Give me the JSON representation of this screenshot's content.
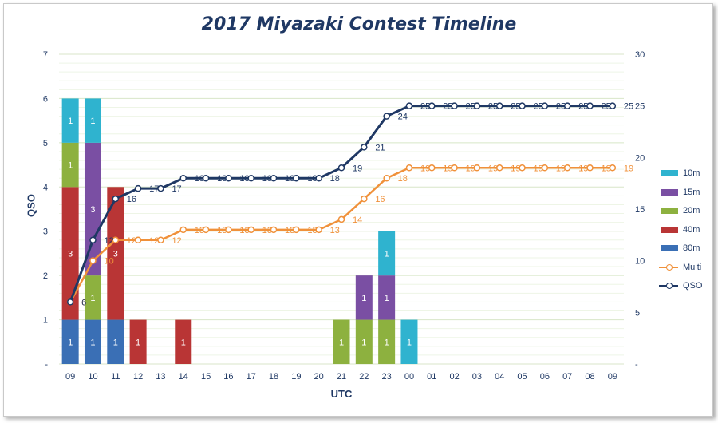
{
  "chart_data": {
    "type": "bar",
    "title": "2017 Miyazaki Contest Timeline",
    "xlabel": "UTC",
    "ylabel": "QSO",
    "categories": [
      "09",
      "10",
      "11",
      "12",
      "13",
      "14",
      "15",
      "16",
      "17",
      "18",
      "19",
      "20",
      "21",
      "22",
      "23",
      "00",
      "01",
      "02",
      "03",
      "04",
      "05",
      "06",
      "07",
      "08",
      "09"
    ],
    "ylim": [
      0,
      7
    ],
    "y_ticks": [
      "-",
      "1",
      "2",
      "3",
      "4",
      "5",
      "6",
      "7"
    ],
    "y2lim": [
      0,
      30
    ],
    "y2_ticks": [
      "-",
      "5",
      "10",
      "15",
      "20",
      "25",
      "30"
    ],
    "stack_order": [
      "80m",
      "40m",
      "20m",
      "15m",
      "10m"
    ],
    "bar_series": [
      {
        "name": "80m",
        "color": "#3a6fb5",
        "values": [
          1,
          1,
          1,
          0,
          0,
          0,
          0,
          0,
          0,
          0,
          0,
          0,
          0,
          0,
          0,
          0,
          0,
          0,
          0,
          0,
          0,
          0,
          0,
          0,
          0
        ]
      },
      {
        "name": "40m",
        "color": "#b93535",
        "values": [
          3,
          0,
          3,
          1,
          0,
          1,
          0,
          0,
          0,
          0,
          0,
          0,
          0,
          0,
          0,
          0,
          0,
          0,
          0,
          0,
          0,
          0,
          0,
          0,
          0
        ]
      },
      {
        "name": "20m",
        "color": "#8db13f",
        "values": [
          1,
          1,
          0,
          0,
          0,
          0,
          0,
          0,
          0,
          0,
          0,
          0,
          1,
          1,
          1,
          0,
          0,
          0,
          0,
          0,
          0,
          0,
          0,
          0,
          0
        ]
      },
      {
        "name": "15m",
        "color": "#7a4fa3",
        "values": [
          0,
          3,
          0,
          0,
          0,
          0,
          0,
          0,
          0,
          0,
          0,
          0,
          0,
          1,
          1,
          0,
          0,
          0,
          0,
          0,
          0,
          0,
          0,
          0,
          0
        ]
      },
      {
        "name": "10m",
        "color": "#2fb3cf",
        "values": [
          1,
          1,
          0,
          0,
          0,
          0,
          0,
          0,
          0,
          0,
          0,
          0,
          0,
          0,
          1,
          1,
          0,
          0,
          0,
          0,
          0,
          0,
          0,
          0,
          0
        ]
      }
    ],
    "line_series": [
      {
        "name": "Multi",
        "color": "#f0913a",
        "axis": "right",
        "values": [
          6,
          10,
          12,
          12,
          12,
          13,
          13,
          13,
          13,
          13,
          13,
          13,
          14,
          16,
          18,
          19,
          19,
          19,
          19,
          19,
          19,
          19,
          19,
          19,
          19
        ]
      },
      {
        "name": "QSO",
        "color": "#1f3864",
        "axis": "right",
        "values": [
          6,
          12,
          16,
          17,
          17,
          18,
          18,
          18,
          18,
          18,
          18,
          18,
          19,
          21,
          24,
          25,
          25,
          25,
          25,
          25,
          25,
          25,
          25,
          25,
          25
        ]
      }
    ],
    "legend": [
      "10m",
      "15m",
      "20m",
      "40m",
      "80m",
      "Multi",
      "QSO"
    ],
    "legend_position": "right",
    "grid": true
  }
}
